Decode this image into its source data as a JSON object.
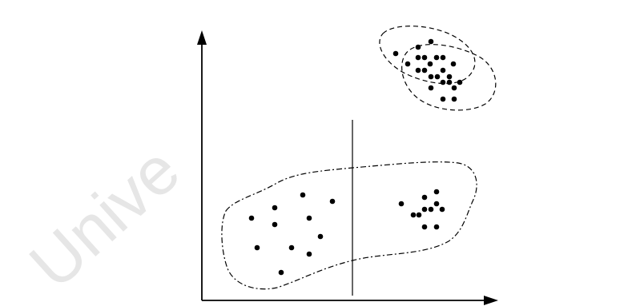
{
  "figure": {
    "watermark": "Unive",
    "colors": {
      "background": "#ffffff",
      "ink": "#000000",
      "watermark": "#e6e6e6"
    },
    "axes": {
      "x_arrow": true,
      "y_arrow": true,
      "vertical_divider": true
    },
    "clusters": [
      {
        "id": "top-left-outline",
        "style": "dashed",
        "points": 11
      },
      {
        "id": "top-right-outline",
        "style": "dashed",
        "points": 12
      },
      {
        "id": "bottom-outline",
        "style": "dash-dot",
        "points": 22
      }
    ]
  }
}
